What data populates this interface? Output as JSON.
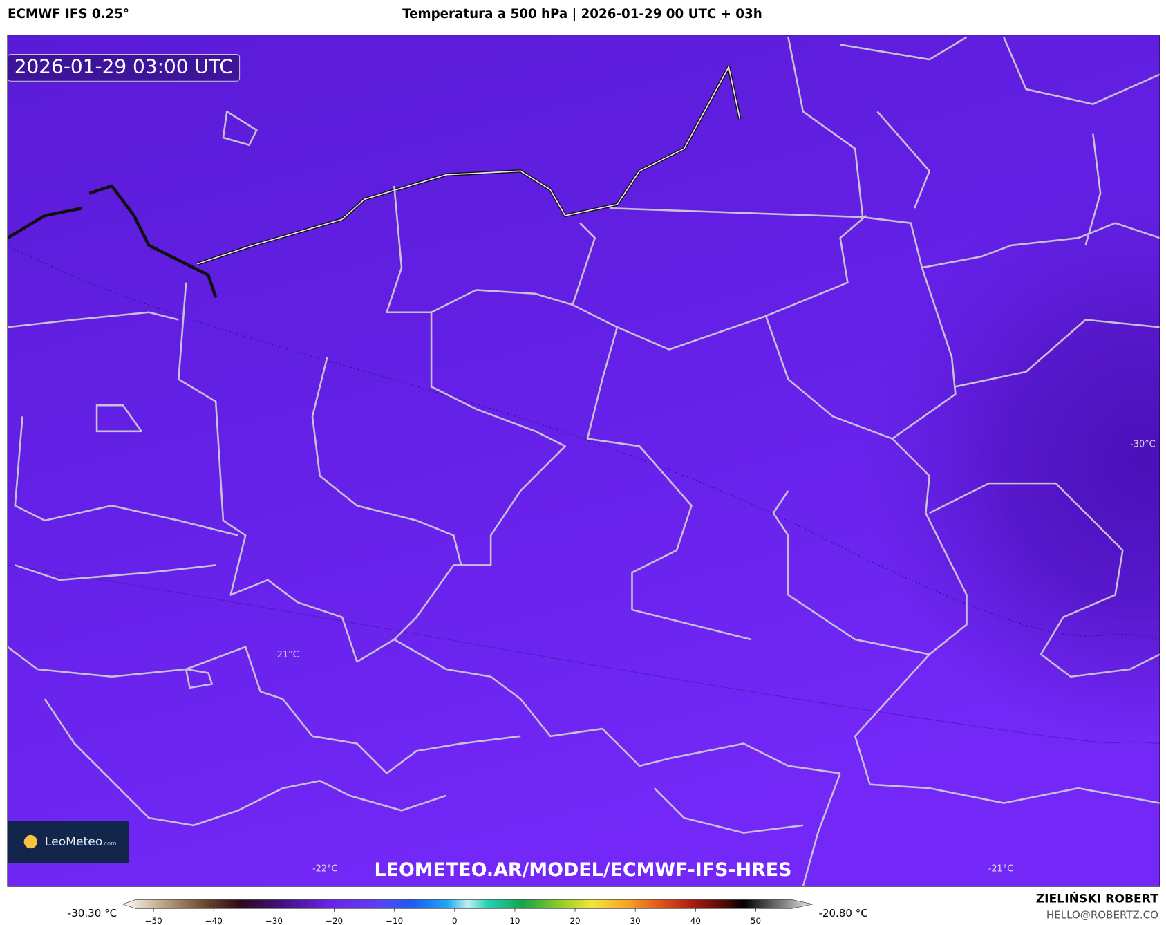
{
  "header": {
    "model": "ECMWF IFS 0.25°",
    "title": "Temperatura a 500 hPa | 2026-01-29 00 UTC + 03h"
  },
  "map": {
    "timestamp": "2026-01-29 03:00 UTC",
    "contour_labels": [
      "-30°C",
      "-21°C",
      "-22°C",
      "-21°C"
    ],
    "watermark": "LEOMETEO.AR/MODEL/ECMWF-IFS-HRES",
    "logo": {
      "name": "LeoMeteo",
      "suffix": ".com"
    }
  },
  "colorbar": {
    "min_label": "-30.30 °C",
    "max_label": "-20.80 °C",
    "lim": [
      -53,
      56
    ],
    "ticks": [
      {
        "value": -50,
        "label": "−50"
      },
      {
        "value": -40,
        "label": "−40"
      },
      {
        "value": -30,
        "label": "−30"
      },
      {
        "value": -20,
        "label": "−20"
      },
      {
        "value": -10,
        "label": "−10"
      },
      0,
      10,
      20,
      30,
      40,
      50
    ]
  },
  "footer": {
    "author": "ZIELIŃSKI ROBERT",
    "email": "HELLO@ROBERTZ.CO"
  }
}
